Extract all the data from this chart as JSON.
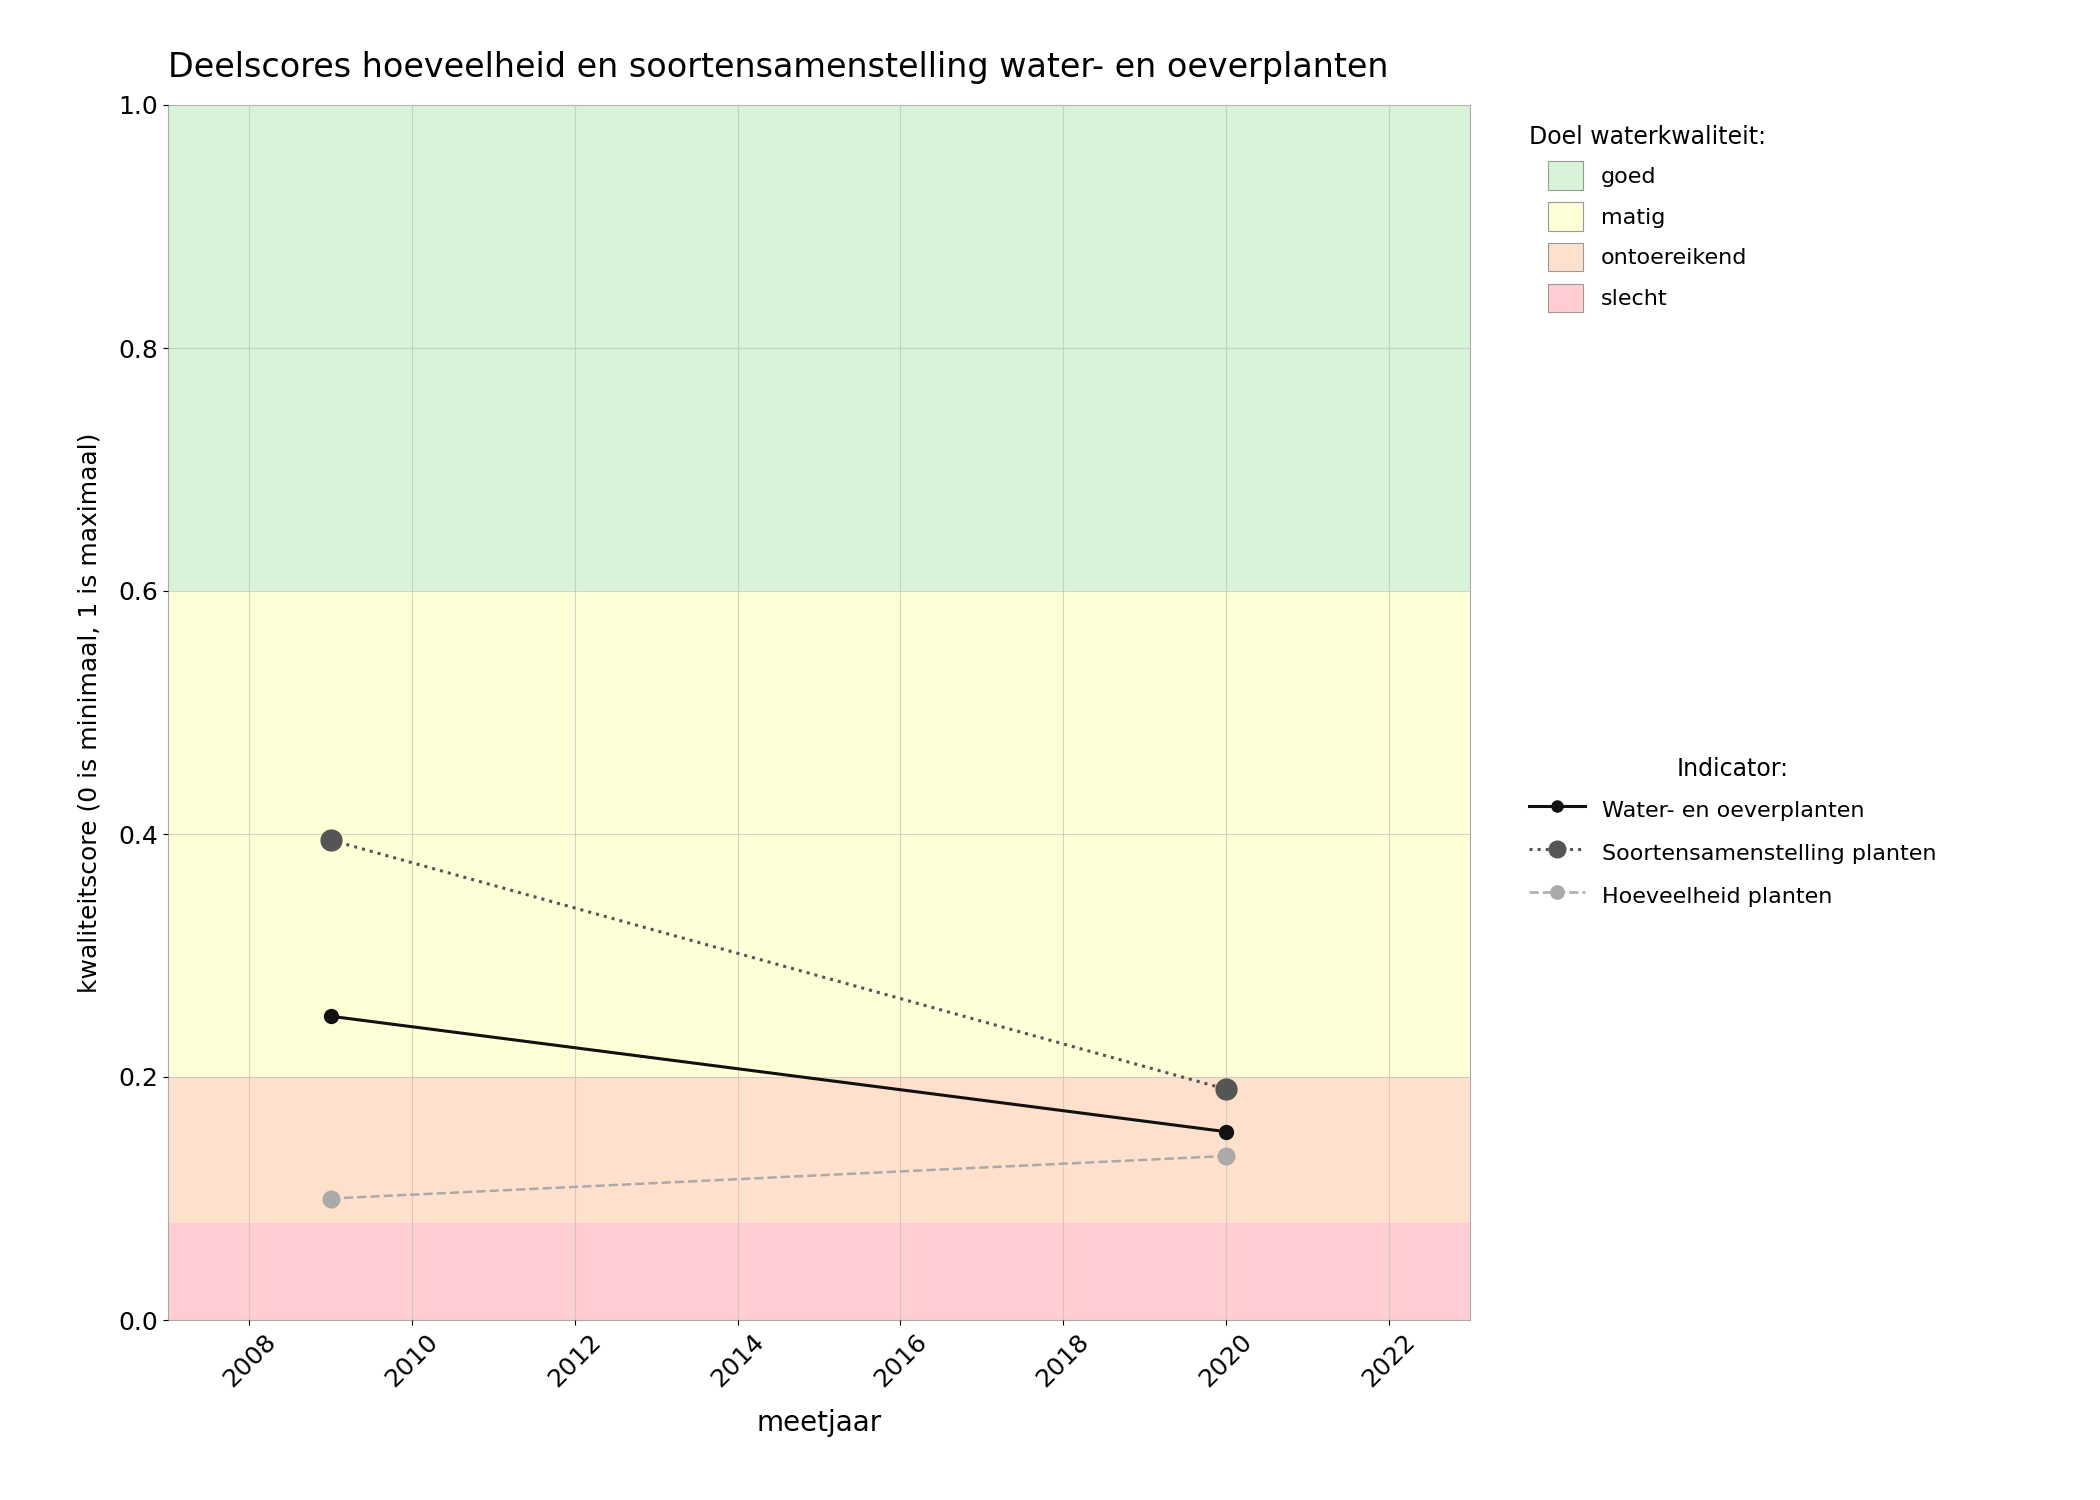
{
  "title": "Deelscores hoeveelheid en soortensamenstelling water- en oeverplanten",
  "xlabel": "meetjaar",
  "ylabel": "kwaliteitscore (0 is minimaal, 1 is maximaal)",
  "xlim": [
    2007,
    2023
  ],
  "ylim": [
    0.0,
    1.0
  ],
  "xticks": [
    2008,
    2010,
    2012,
    2014,
    2016,
    2018,
    2020,
    2022
  ],
  "yticks": [
    0.0,
    0.2,
    0.4,
    0.6,
    0.8,
    1.0
  ],
  "background_color": "#ffffff",
  "bg_bands": [
    {
      "ymin": 0.0,
      "ymax": 0.08,
      "color": "#ffcdd2",
      "label": "slecht"
    },
    {
      "ymin": 0.08,
      "ymax": 0.2,
      "color": "#ffe0cc",
      "label": "ontoereikend"
    },
    {
      "ymin": 0.2,
      "ymax": 0.6,
      "color": "#feffd6",
      "label": "matig"
    },
    {
      "ymin": 0.6,
      "ymax": 1.0,
      "color": "#d8f3d8",
      "label": "goed"
    }
  ],
  "series": [
    {
      "name": "Water- en oeverplanten",
      "x": [
        2009,
        2020
      ],
      "y": [
        0.25,
        0.155
      ],
      "color": "#111111",
      "linestyle": "solid",
      "linewidth": 2.2,
      "markersize": 10,
      "marker": "o",
      "zorder": 5
    },
    {
      "name": "Soortensamenstelling planten",
      "x": [
        2009,
        2020
      ],
      "y": [
        0.395,
        0.19
      ],
      "color": "#555555",
      "linestyle": "dotted",
      "linewidth": 2.2,
      "markersize": 15,
      "marker": "o",
      "zorder": 4
    },
    {
      "name": "Hoeveelheid planten",
      "x": [
        2009,
        2020
      ],
      "y": [
        0.1,
        0.135
      ],
      "color": "#aaaaaa",
      "linestyle": "dashed",
      "linewidth": 1.8,
      "markersize": 12,
      "marker": "o",
      "zorder": 3
    }
  ],
  "legend_title_kwaliteit": "Doel waterkwaliteit:",
  "legend_title_indicator": "Indicator:",
  "grid_color": "#bbbbbb",
  "grid_alpha": 0.6,
  "figsize": [
    21.0,
    15.0
  ],
  "dpi": 100
}
